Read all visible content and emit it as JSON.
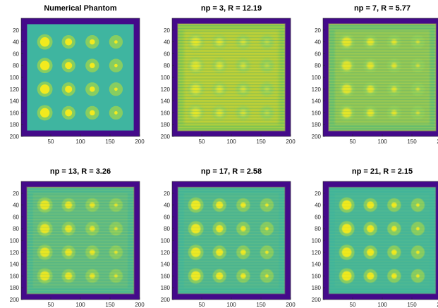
{
  "colors": {
    "background": "#440a8a",
    "frame": "#5a26a8",
    "field": "#3fb5a0",
    "ring": "#8fcf5a",
    "core": "#f2ea1e",
    "warm_field": "#8cc84a"
  },
  "axis": {
    "x_ticks": [
      "50",
      "100",
      "150",
      "200"
    ],
    "y_ticks": [
      "20",
      "40",
      "60",
      "80",
      "100",
      "120",
      "140",
      "160",
      "180",
      "200"
    ]
  },
  "panels": [
    {
      "title": "Numerical Phantom",
      "variant": "phantom"
    },
    {
      "title": "np = 3, R = 12.19",
      "variant": "np3"
    },
    {
      "title": "np = 7, R = 5.77",
      "variant": "np7"
    },
    {
      "title": "np = 13, R = 3.26",
      "variant": "np13"
    },
    {
      "title": "np = 17, R = 2.58",
      "variant": "np17"
    },
    {
      "title": "np = 21, R = 2.15",
      "variant": "np21"
    }
  ]
}
